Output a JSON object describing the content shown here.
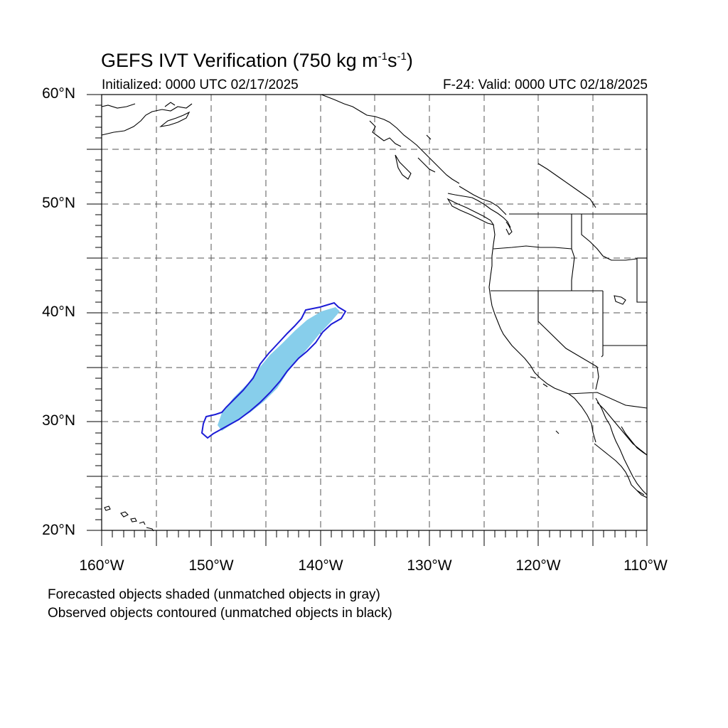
{
  "title": {
    "main": "GEFS IVT Verification (750 kg m",
    "sup1": "-1",
    "mid": "s",
    "sup2": "-1",
    "end": ")"
  },
  "initialized": "Initialized: 0000 UTC 02/17/2025",
  "valid": "F-24: Valid: 0000 UTC 02/18/2025",
  "map": {
    "extent": {
      "lon": [
        -160,
        -110
      ],
      "lat": [
        20,
        60
      ]
    },
    "grid": "dashed gray every 5 degrees",
    "lat_labels": [
      "60°N",
      "50°N",
      "40°N",
      "30°N",
      "20°N"
    ],
    "lon_labels": [
      "160°W",
      "150°W",
      "140°W",
      "130°W",
      "120°W",
      "110°W"
    ],
    "colors": {
      "forecast_object_fill": "#87ceeb",
      "observed_object_contour": "#1c1cd6",
      "coastline": "#000000",
      "grid": "#555555"
    },
    "objects": {
      "forecast_shaded": "matched forecasted IVT object (light blue)",
      "observed_contour": "matched observed IVT object (blue contour)"
    }
  },
  "footnote": {
    "line1": "Forecasted objects shaded (unmatched objects in gray)",
    "line2": "Observed objects contoured (unmatched objects in black)"
  }
}
